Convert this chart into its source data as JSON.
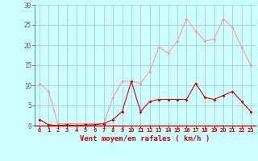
{
  "x": [
    0,
    1,
    2,
    3,
    4,
    5,
    6,
    7,
    8,
    9,
    10,
    11,
    12,
    13,
    14,
    15,
    16,
    17,
    18,
    19,
    20,
    21,
    22,
    23
  ],
  "y_moyen": [
    1.5,
    0.2,
    0.0,
    0.2,
    0.0,
    0.2,
    0.2,
    0.5,
    1.5,
    3.5,
    11.0,
    3.5,
    6.0,
    6.5,
    6.5,
    6.5,
    6.5,
    10.5,
    7.0,
    6.5,
    7.5,
    8.5,
    6.0,
    3.5
  ],
  "y_rafales": [
    10.5,
    8.5,
    0.5,
    0.5,
    0.5,
    0.5,
    0.5,
    0.5,
    7.0,
    11.0,
    11.0,
    10.5,
    13.5,
    19.5,
    18.0,
    21.0,
    26.5,
    23.5,
    21.0,
    21.5,
    26.5,
    24.5,
    19.5,
    15.0
  ],
  "color_moyen": "#cc0000",
  "color_rafales": "#ff9999",
  "bg_color": "#ccffff",
  "grid_color": "#aacccc",
  "xlabel": "Vent moyen/en rafales ( km/h )",
  "ylim": [
    0,
    30
  ],
  "xlim": [
    -0.5,
    23.5
  ],
  "yticks": [
    0,
    5,
    10,
    15,
    20,
    25,
    30
  ],
  "xticks": [
    0,
    1,
    2,
    3,
    4,
    5,
    6,
    7,
    8,
    9,
    10,
    11,
    12,
    13,
    14,
    15,
    16,
    17,
    18,
    19,
    20,
    21,
    22,
    23
  ]
}
